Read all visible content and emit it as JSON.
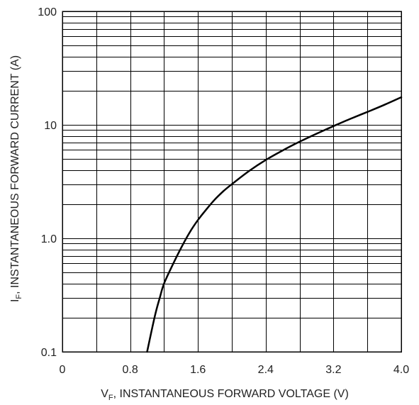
{
  "chart_data": {
    "type": "line",
    "title": "",
    "xlabel": {
      "symbol": "V",
      "subscript": "F",
      "text": ", INSTANTANEOUS FORWARD VOLTAGE (V)"
    },
    "ylabel": {
      "symbol": "I",
      "subscript": "F",
      "text": ", INSTANTANEOUS FORWARD CURRENT (A)"
    },
    "x_scale": "linear",
    "y_scale": "log",
    "xlim": [
      0,
      4.0
    ],
    "ylim": [
      0.1,
      100
    ],
    "x_ticks": [
      {
        "value": 0,
        "label": "0"
      },
      {
        "value": 0.8,
        "label": "0.8"
      },
      {
        "value": 1.6,
        "label": "1.6"
      },
      {
        "value": 2.4,
        "label": "2.4"
      },
      {
        "value": 3.2,
        "label": "3.2"
      },
      {
        "value": 4.0,
        "label": "4.0"
      }
    ],
    "x_grid_step": 0.4,
    "y_ticks": [
      {
        "value": 0.1,
        "label": "0.1"
      },
      {
        "value": 1.0,
        "label": "1.0"
      },
      {
        "value": 10,
        "label": "10"
      },
      {
        "value": 100,
        "label": "100"
      }
    ],
    "grid": true,
    "legend": "none",
    "line_color": "#000000",
    "series": [
      {
        "x": [
          1.0,
          1.05,
          1.1,
          1.15,
          1.2,
          1.3,
          1.4,
          1.5,
          1.6,
          1.7,
          1.8,
          1.9,
          2.0,
          2.2,
          2.4,
          2.6,
          2.8,
          3.0,
          3.2,
          3.4,
          3.6,
          3.8,
          4.0
        ],
        "y": [
          0.1,
          0.15,
          0.22,
          0.3,
          0.4,
          0.58,
          0.82,
          1.12,
          1.45,
          1.8,
          2.2,
          2.6,
          3.0,
          3.9,
          4.9,
          5.95,
          7.1,
          8.35,
          9.75,
          11.3,
          13.0,
          15.0,
          17.5
        ]
      }
    ]
  }
}
